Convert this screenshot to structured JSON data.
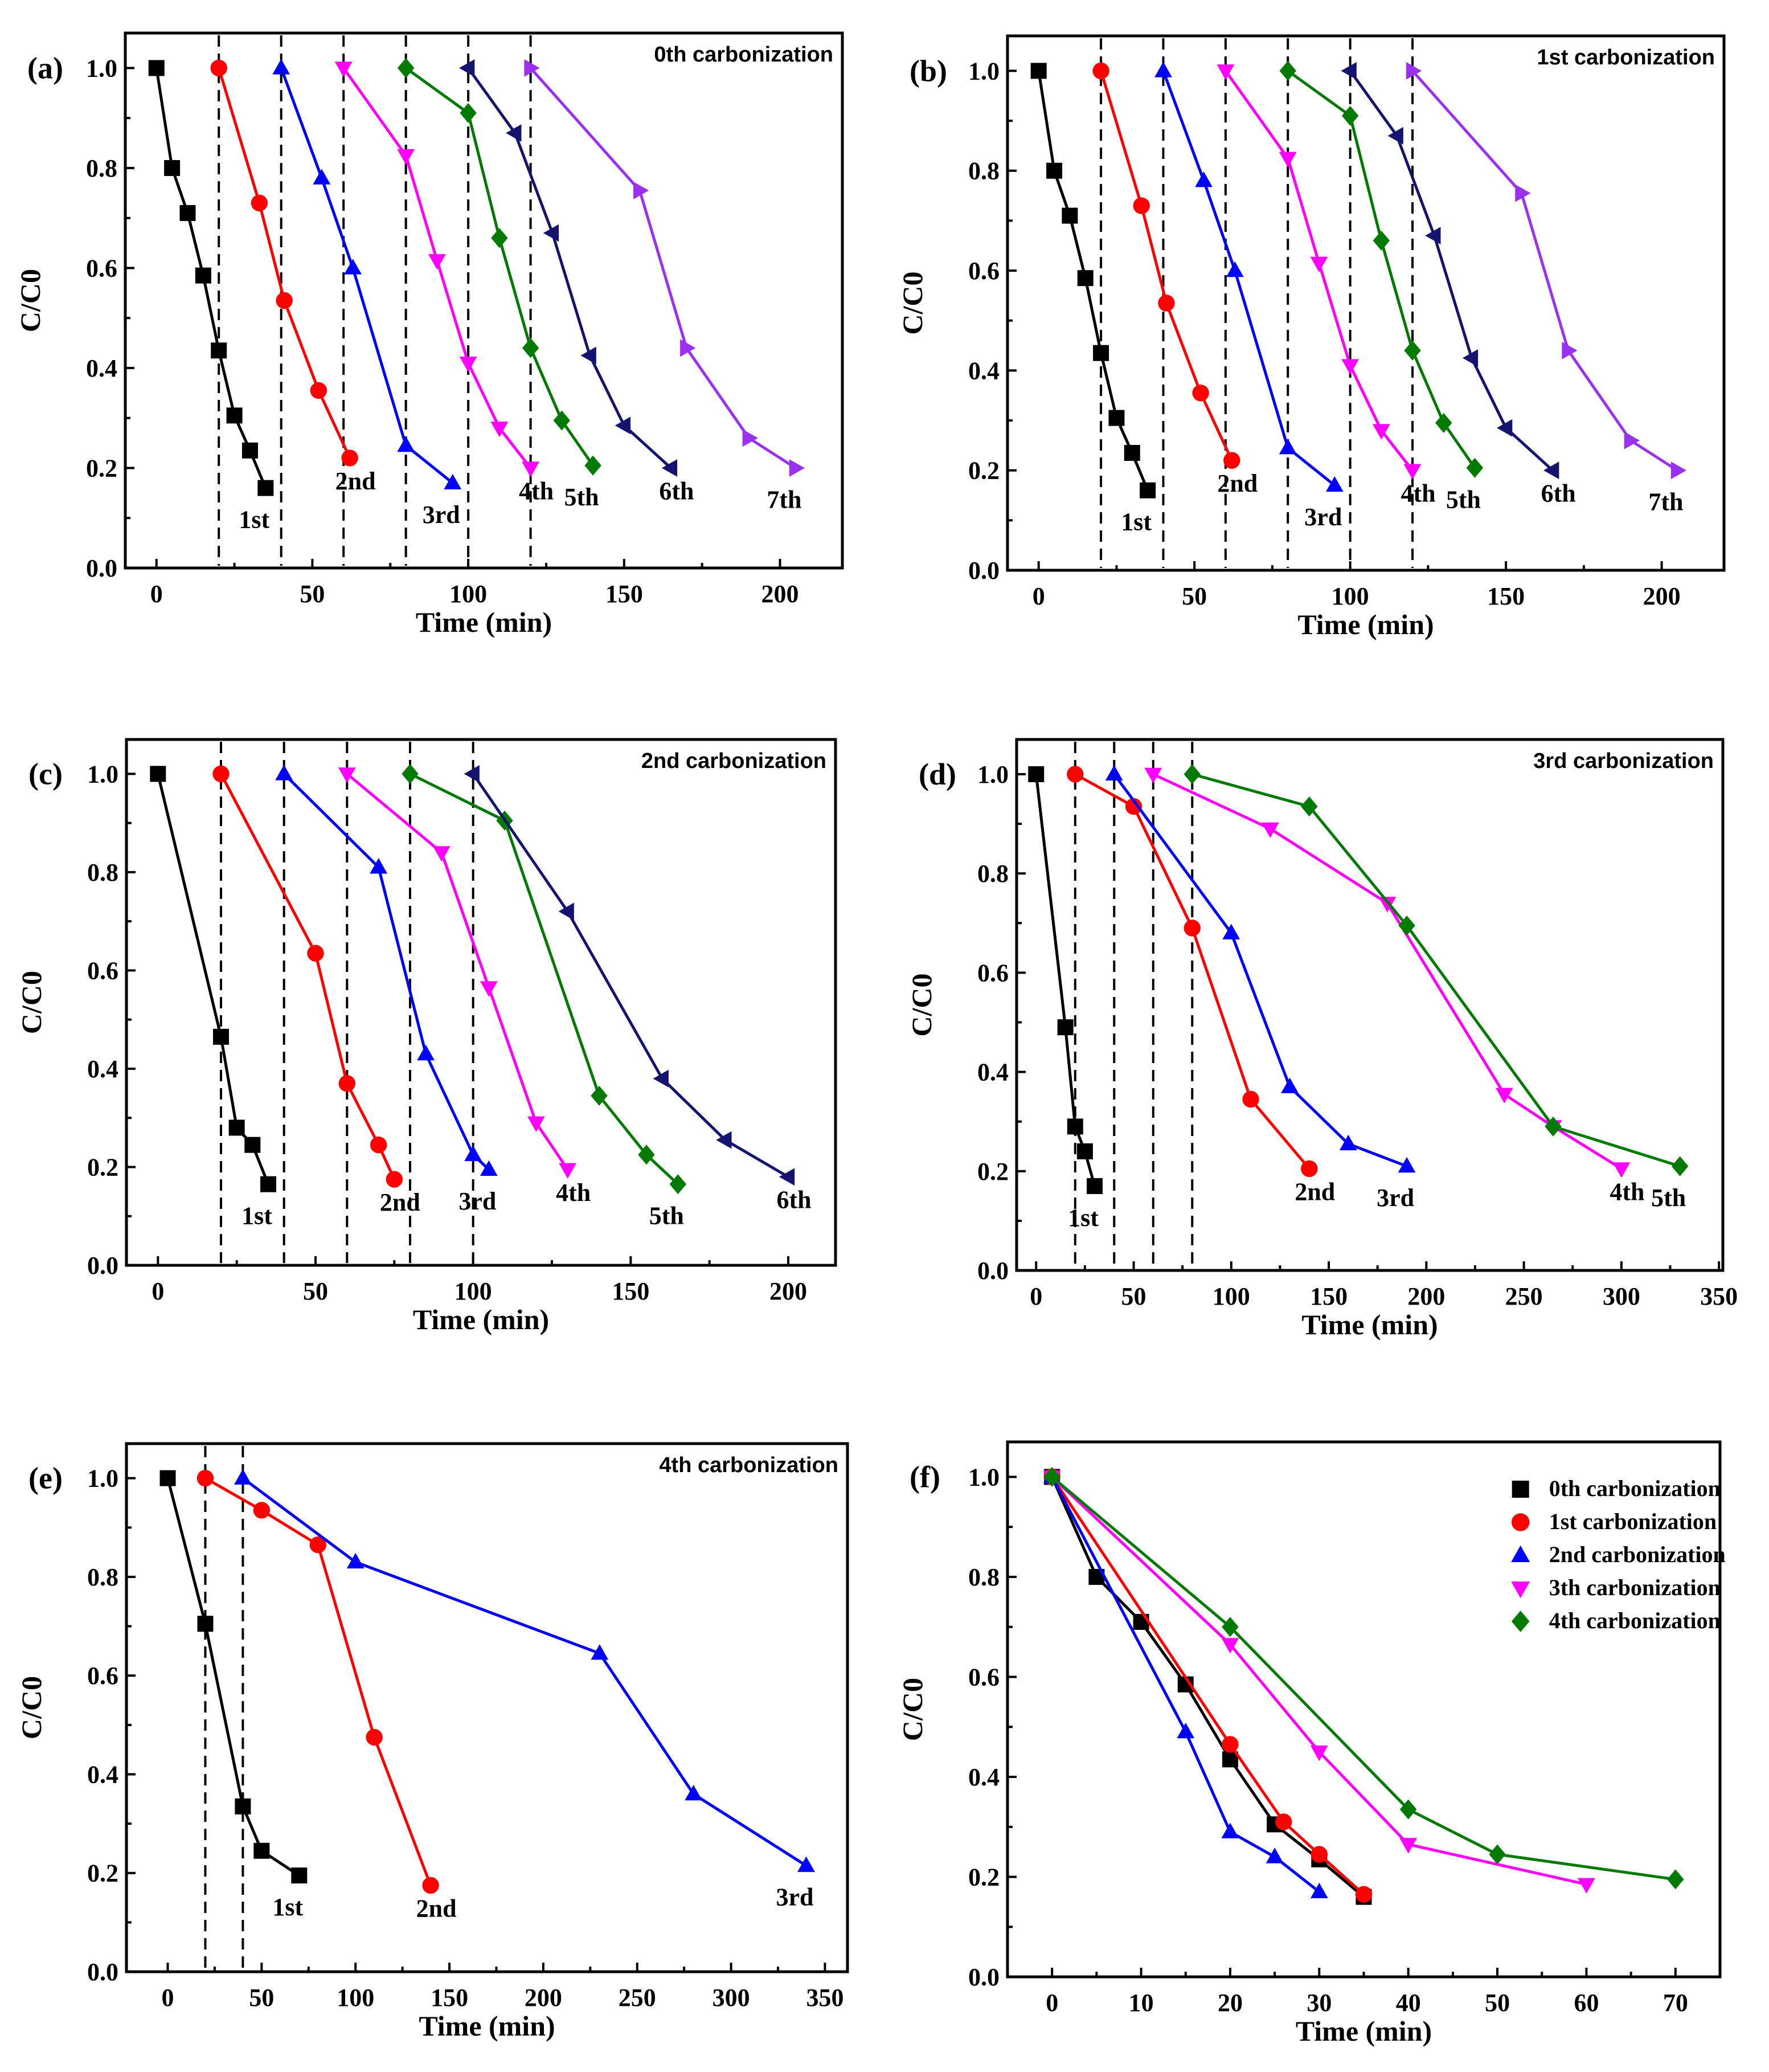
{
  "chart_data": [
    {
      "type": "line",
      "panel_label": "(a)",
      "title": "0th carbonization",
      "xlabel": "Time (min)",
      "ylabel": "C/C0",
      "xlim": [
        -10,
        220
      ],
      "ylim": [
        0,
        1.07
      ],
      "xticks": [
        0,
        50,
        100,
        150,
        200
      ],
      "yticks": [
        "0.0",
        "0.2",
        "0.4",
        "0.6",
        "0.8",
        "1.0"
      ],
      "dividers": [
        20,
        40,
        60,
        80,
        100,
        120
      ],
      "series": [
        {
          "label": "1st",
          "marker": "square",
          "color": "#000000",
          "x": [
            0,
            5,
            10,
            15,
            20,
            25,
            30,
            35
          ],
          "y": [
            1.0,
            0.8,
            0.71,
            0.585,
            0.435,
            0.305,
            0.235,
            0.16
          ]
        },
        {
          "label": "2nd",
          "marker": "circle",
          "color": "#ff0000",
          "x": [
            20,
            33,
            41,
            52,
            62
          ],
          "y": [
            1.0,
            0.73,
            0.535,
            0.355,
            0.22
          ]
        },
        {
          "label": "3rd",
          "marker": "triangle-up",
          "color": "#0000ff",
          "x": [
            40,
            53,
            63,
            80,
            95
          ],
          "y": [
            1.0,
            0.78,
            0.6,
            0.245,
            0.17
          ]
        },
        {
          "label": "4th",
          "marker": "triangle-down",
          "color": "#ff00ff",
          "x": [
            60,
            80,
            90,
            100,
            110,
            120
          ],
          "y": [
            1.0,
            0.825,
            0.615,
            0.41,
            0.28,
            0.2
          ]
        },
        {
          "label": "5th",
          "marker": "diamond",
          "color": "#007a00",
          "x": [
            80,
            100,
            110,
            120,
            130,
            140
          ],
          "y": [
            1.0,
            0.91,
            0.66,
            0.44,
            0.295,
            0.205
          ]
        },
        {
          "label": "6th",
          "marker": "triangle-left",
          "color": "#141470",
          "x": [
            100,
            115,
            127,
            139,
            150,
            165
          ],
          "y": [
            1.0,
            0.87,
            0.67,
            0.425,
            0.285,
            0.2
          ]
        },
        {
          "label": "7th",
          "marker": "triangle-right",
          "color": "#9a30f0",
          "x": [
            120,
            155,
            170,
            190,
            205
          ],
          "y": [
            1.0,
            0.755,
            0.44,
            0.26,
            0.2
          ]
        }
      ]
    },
    {
      "type": "line",
      "panel_label": "(b)",
      "title": "1st carbonization",
      "xlabel": "Time (min)",
      "ylabel": "C/C0",
      "xlim": [
        -10,
        220
      ],
      "ylim": [
        0,
        1.07
      ],
      "xticks": [
        0,
        50,
        100,
        150,
        200
      ],
      "yticks": [
        "0.0",
        "0.2",
        "0.4",
        "0.6",
        "0.8",
        "1.0"
      ],
      "dividers": [
        20,
        40,
        60,
        80,
        100,
        120
      ],
      "series": [
        {
          "label": "1st",
          "marker": "square",
          "color": "#000000",
          "x": [
            0,
            5,
            10,
            15,
            20,
            25,
            30,
            35
          ],
          "y": [
            1.0,
            0.8,
            0.71,
            0.585,
            0.435,
            0.305,
            0.235,
            0.16
          ]
        },
        {
          "label": "2nd",
          "marker": "circle",
          "color": "#ff0000",
          "x": [
            20,
            33,
            41,
            52,
            62
          ],
          "y": [
            1.0,
            0.73,
            0.535,
            0.355,
            0.22
          ]
        },
        {
          "label": "3rd",
          "marker": "triangle-up",
          "color": "#0000ff",
          "x": [
            40,
            53,
            63,
            80,
            95
          ],
          "y": [
            1.0,
            0.78,
            0.6,
            0.245,
            0.17
          ]
        },
        {
          "label": "4th",
          "marker": "triangle-down",
          "color": "#ff00ff",
          "x": [
            60,
            80,
            90,
            100,
            110,
            120
          ],
          "y": [
            1.0,
            0.825,
            0.615,
            0.41,
            0.28,
            0.2
          ]
        },
        {
          "label": "5th",
          "marker": "diamond",
          "color": "#007a00",
          "x": [
            80,
            100,
            110,
            120,
            130,
            140
          ],
          "y": [
            1.0,
            0.91,
            0.66,
            0.44,
            0.295,
            0.205
          ]
        },
        {
          "label": "6th",
          "marker": "triangle-left",
          "color": "#141470",
          "x": [
            100,
            115,
            127,
            139,
            150,
            165
          ],
          "y": [
            1.0,
            0.87,
            0.67,
            0.425,
            0.285,
            0.2
          ]
        },
        {
          "label": "7th",
          "marker": "triangle-right",
          "color": "#9a30f0",
          "x": [
            120,
            155,
            170,
            190,
            205
          ],
          "y": [
            1.0,
            0.755,
            0.44,
            0.26,
            0.2
          ]
        }
      ]
    },
    {
      "type": "line",
      "panel_label": "(c)",
      "title": "2nd carbonization",
      "xlabel": "Time (min)",
      "ylabel": "C/C0",
      "xlim": [
        -10,
        215
      ],
      "ylim": [
        0,
        1.07
      ],
      "xticks": [
        0,
        50,
        100,
        150,
        200
      ],
      "yticks": [
        "0.0",
        "0.2",
        "0.4",
        "0.6",
        "0.8",
        "1.0"
      ],
      "dividers": [
        20,
        40,
        60,
        80,
        100
      ],
      "series": [
        {
          "label": "1st",
          "marker": "square",
          "color": "#000000",
          "x": [
            0,
            20,
            25,
            30,
            35
          ],
          "y": [
            1.0,
            0.465,
            0.28,
            0.245,
            0.165
          ]
        },
        {
          "label": "2nd",
          "marker": "circle",
          "color": "#ff0000",
          "x": [
            20,
            50,
            60,
            70,
            75
          ],
          "y": [
            1.0,
            0.635,
            0.37,
            0.245,
            0.175
          ]
        },
        {
          "label": "3rd",
          "marker": "triangle-up",
          "color": "#0000ff",
          "x": [
            40,
            70,
            85,
            100,
            105
          ],
          "y": [
            1.0,
            0.81,
            0.43,
            0.225,
            0.195
          ]
        },
        {
          "label": "4th",
          "marker": "triangle-down",
          "color": "#ff00ff",
          "x": [
            60,
            90,
            105,
            120,
            130
          ],
          "y": [
            1.0,
            0.84,
            0.565,
            0.29,
            0.195
          ]
        },
        {
          "label": "5th",
          "marker": "diamond",
          "color": "#007a00",
          "x": [
            80,
            110,
            140,
            155,
            165
          ],
          "y": [
            1.0,
            0.905,
            0.345,
            0.225,
            0.165
          ]
        },
        {
          "label": "6th",
          "marker": "triangle-left",
          "color": "#141470",
          "x": [
            100,
            130,
            160,
            180,
            200
          ],
          "y": [
            1.0,
            0.72,
            0.38,
            0.255,
            0.18
          ]
        }
      ]
    },
    {
      "type": "line",
      "panel_label": "(d)",
      "title": "3rd carbonization",
      "xlabel": "Time (min)",
      "ylabel": "C/C0",
      "xlim": [
        -10,
        352
      ],
      "ylim": [
        0,
        1.07
      ],
      "xticks": [
        0,
        50,
        100,
        150,
        200,
        250,
        300,
        350
      ],
      "yticks": [
        "0.0",
        "0.2",
        "0.4",
        "0.6",
        "0.8",
        "1.0"
      ],
      "dividers": [
        20,
        40,
        60,
        80
      ],
      "series": [
        {
          "label": "1st",
          "marker": "square",
          "color": "#000000",
          "x": [
            0,
            15,
            20,
            25,
            30
          ],
          "y": [
            1.0,
            0.49,
            0.29,
            0.24,
            0.17
          ]
        },
        {
          "label": "2nd",
          "marker": "circle",
          "color": "#ff0000",
          "x": [
            20,
            50,
            80,
            110,
            140
          ],
          "y": [
            1.0,
            0.935,
            0.69,
            0.345,
            0.205
          ]
        },
        {
          "label": "3rd",
          "marker": "triangle-up",
          "color": "#0000ff",
          "x": [
            40,
            100,
            130,
            160,
            190
          ],
          "y": [
            1.0,
            0.68,
            0.37,
            0.255,
            0.21
          ]
        },
        {
          "label": "4th",
          "marker": "triangle-down",
          "color": "#ff00ff",
          "x": [
            60,
            120,
            180,
            240,
            265,
            300
          ],
          "y": [
            1.0,
            0.89,
            0.74,
            0.355,
            0.29,
            0.205
          ]
        },
        {
          "label": "5th",
          "marker": "diamond",
          "color": "#007a00",
          "x": [
            80,
            140,
            190,
            265,
            330
          ],
          "y": [
            1.0,
            0.935,
            0.695,
            0.29,
            0.21
          ]
        }
      ]
    },
    {
      "type": "line",
      "panel_label": "(e)",
      "title": "4th carbonization",
      "xlabel": "Time (min)",
      "ylabel": "C/C0",
      "xlim": [
        -22,
        362
      ],
      "ylim": [
        0,
        1.07
      ],
      "xticks": [
        0,
        50,
        100,
        150,
        200,
        250,
        300,
        350
      ],
      "yticks": [
        "0.0",
        "0.2",
        "0.4",
        "0.6",
        "0.8",
        "1.0"
      ],
      "dividers": [
        20,
        40
      ],
      "series": [
        {
          "label": "1st",
          "marker": "square",
          "color": "#000000",
          "x": [
            0,
            20,
            40,
            50,
            70
          ],
          "y": [
            1.0,
            0.705,
            0.335,
            0.245,
            0.195
          ]
        },
        {
          "label": "2nd",
          "marker": "circle",
          "color": "#ff0000",
          "x": [
            20,
            50,
            80,
            110,
            140
          ],
          "y": [
            1.0,
            0.935,
            0.865,
            0.475,
            0.175
          ]
        },
        {
          "label": "3rd",
          "marker": "triangle-up",
          "color": "#0000ff",
          "x": [
            40,
            100,
            230,
            280,
            340
          ],
          "y": [
            1.0,
            0.83,
            0.645,
            0.36,
            0.215
          ]
        }
      ]
    },
    {
      "type": "line",
      "panel_label": "(f)",
      "title": "",
      "xlabel": "Time (min)",
      "ylabel": "C/C0",
      "xlim": [
        -5,
        75
      ],
      "ylim": [
        0,
        1.07
      ],
      "xticks": [
        0,
        10,
        20,
        30,
        40,
        50,
        60,
        70
      ],
      "yticks": [
        "0.0",
        "0.2",
        "0.4",
        "0.6",
        "0.8",
        "1.0"
      ],
      "dividers": [],
      "legend": "top-right",
      "series": [
        {
          "name": "0th carbonization",
          "marker": "square",
          "color": "#000000",
          "x": [
            0,
            5,
            10,
            15,
            20,
            25,
            30,
            35
          ],
          "y": [
            1.0,
            0.8,
            0.71,
            0.585,
            0.435,
            0.305,
            0.235,
            0.16
          ]
        },
        {
          "name": "1st carbonization",
          "marker": "circle",
          "color": "#ff0000",
          "x": [
            0,
            20,
            26,
            30,
            35
          ],
          "y": [
            1.0,
            0.465,
            0.31,
            0.245,
            0.165
          ]
        },
        {
          "name": "2nd carbonization",
          "marker": "triangle-up",
          "color": "#0000ff",
          "x": [
            0,
            15,
            20,
            25,
            30
          ],
          "y": [
            1.0,
            0.49,
            0.29,
            0.24,
            0.17
          ]
        },
        {
          "name": "3th carbonization",
          "marker": "triangle-down",
          "color": "#ff00ff",
          "x": [
            0,
            20,
            30,
            40,
            60
          ],
          "y": [
            1.0,
            0.665,
            0.45,
            0.265,
            0.185
          ]
        },
        {
          "name": "4th carbonization",
          "marker": "diamond",
          "color": "#007a00",
          "x": [
            0,
            20,
            40,
            50,
            70
          ],
          "y": [
            1.0,
            0.7,
            0.335,
            0.245,
            0.195
          ]
        }
      ]
    }
  ]
}
